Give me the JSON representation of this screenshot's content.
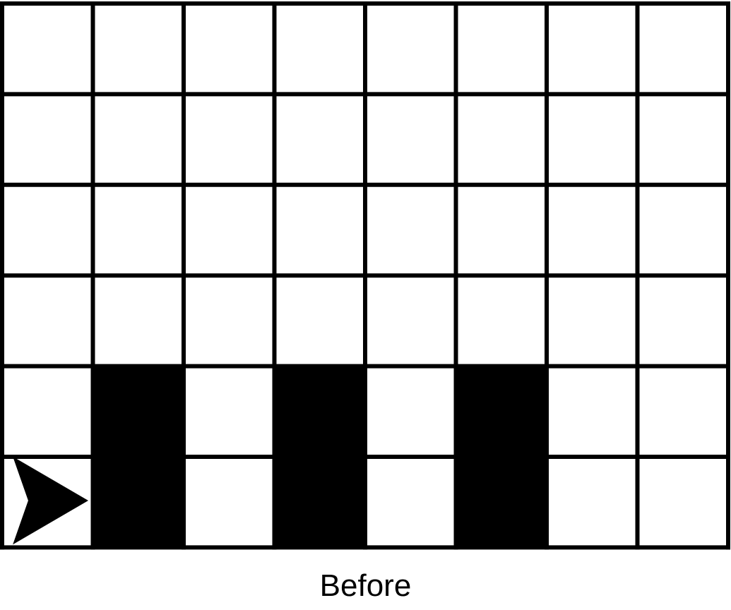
{
  "caption": "Before",
  "grid": {
    "rows": 6,
    "cols": 8,
    "filled_cells": [
      {
        "row": 5,
        "col": 2
      },
      {
        "row": 5,
        "col": 4
      },
      {
        "row": 5,
        "col": 6
      },
      {
        "row": 6,
        "col": 2
      },
      {
        "row": 6,
        "col": 4
      },
      {
        "row": 6,
        "col": 6
      }
    ],
    "filled_color": "#000000",
    "empty_color": "#ffffff",
    "line_color": "#000000"
  },
  "agent": {
    "row": 6,
    "col": 1,
    "facing": "right",
    "icon": "arrowhead-icon",
    "color": "#000000"
  }
}
